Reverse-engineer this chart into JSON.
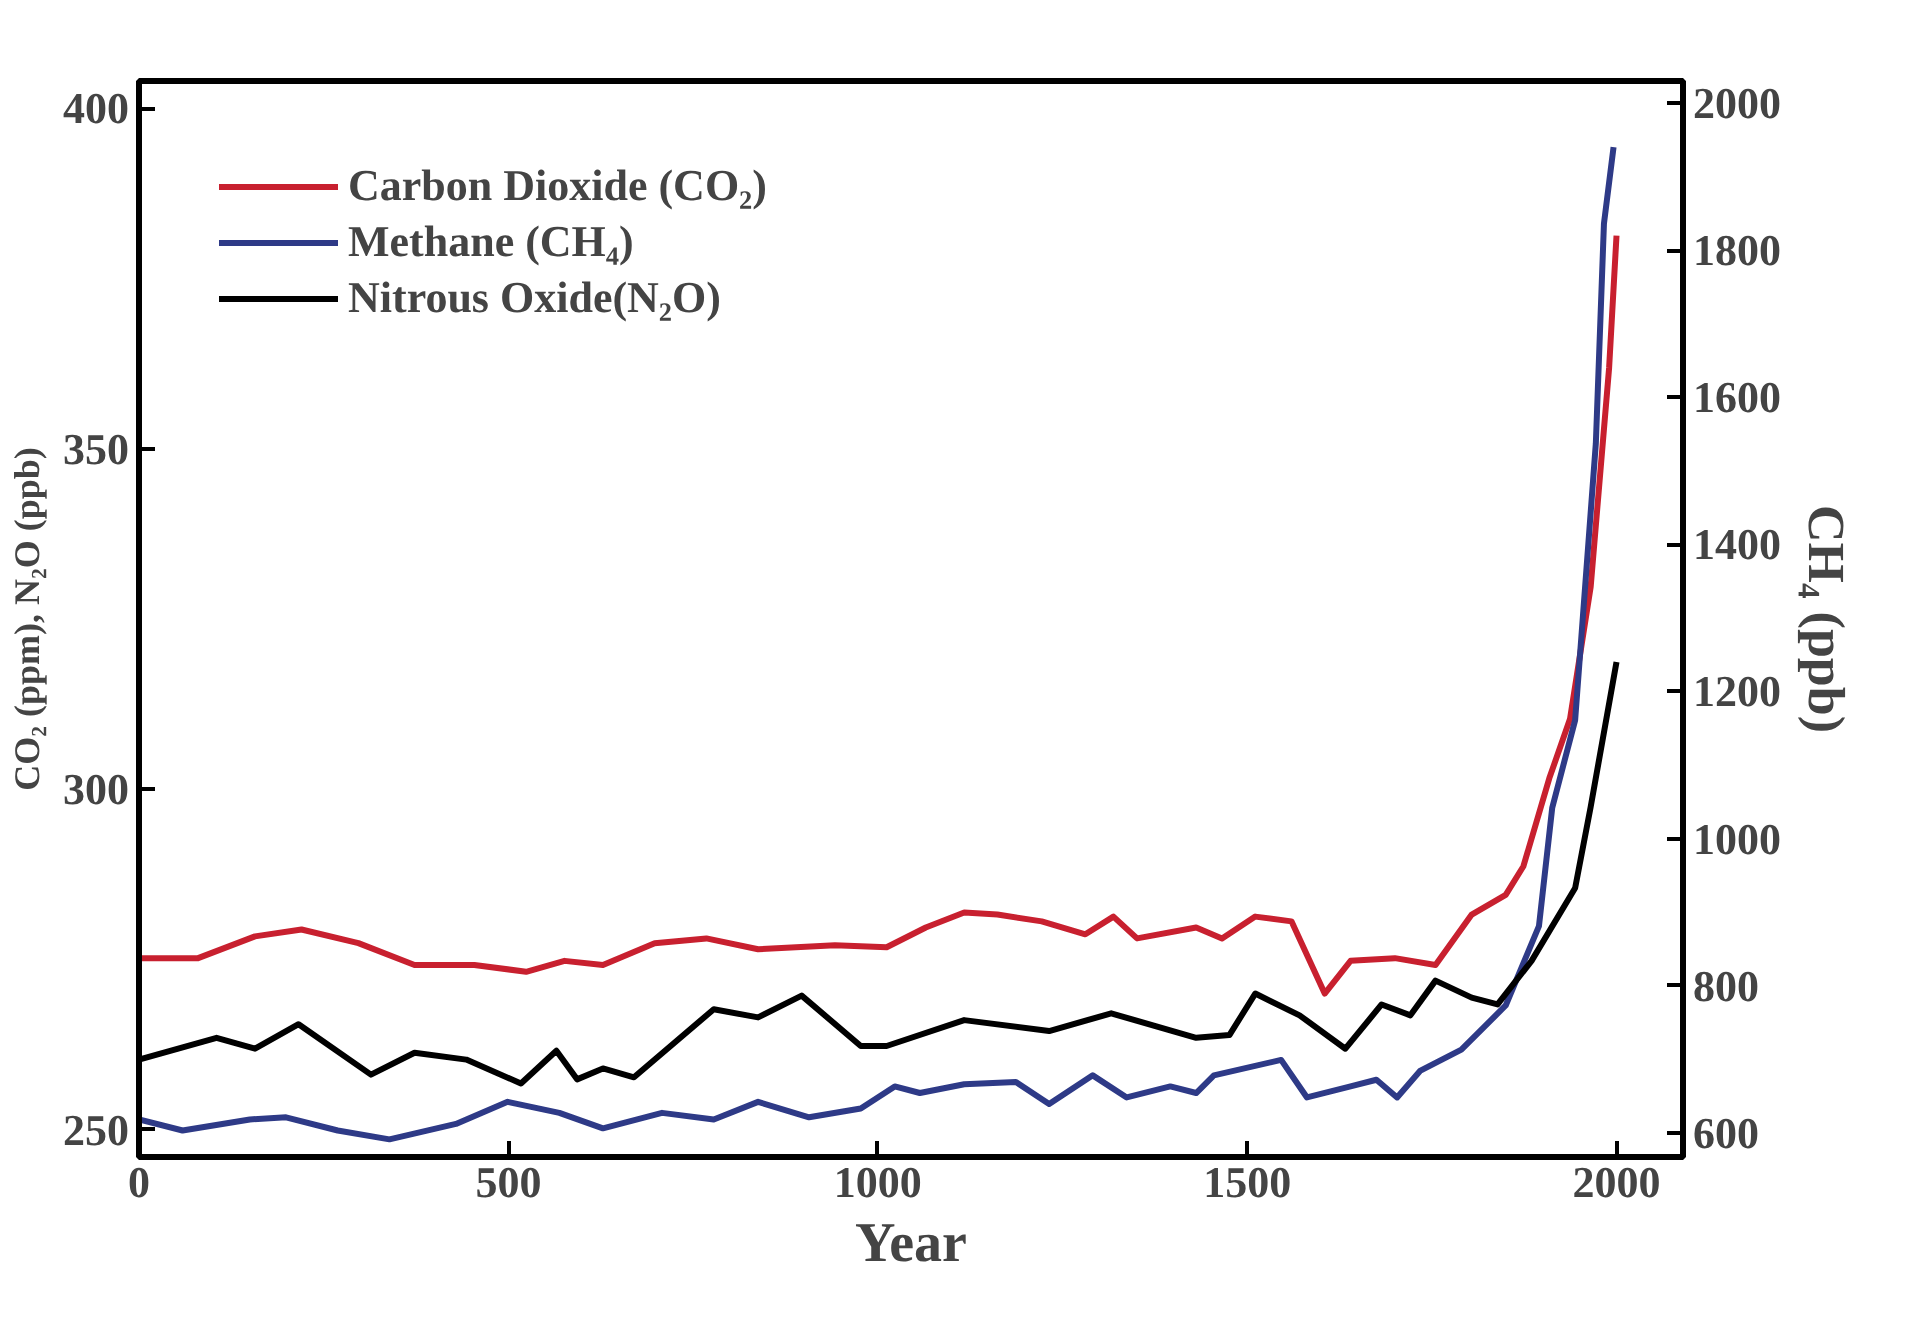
{
  "chart_data": {
    "type": "line",
    "xlabel": "Year",
    "ylabel": "CO₂ (ppm), N₂O (ppb)",
    "y2label": "CH₄ (ppb)",
    "xlim": [
      0,
      2090
    ],
    "xticks": [
      0,
      500,
      1000,
      1500,
      2000
    ],
    "ylim": [
      246,
      404
    ],
    "yticks": [
      250,
      300,
      350,
      400
    ],
    "y2lim": [
      567,
      2030
    ],
    "y2ticks": [
      600,
      800,
      1000,
      1200,
      1400,
      1600,
      1800,
      2000
    ],
    "grid": false,
    "legend": "top left",
    "line_style": "solid",
    "series": [
      {
        "name": "Carbon Dioxide (CO₂)",
        "color": "#c8202f",
        "x": [
          0,
          80,
          157,
          220,
          297,
          373,
          454,
          524,
          576,
          628,
          698,
          768,
          838,
          942,
          1012,
          1065,
          1117,
          1162,
          1222,
          1281,
          1319,
          1351,
          1431,
          1466,
          1511,
          1560,
          1605,
          1640,
          1700,
          1755,
          1804,
          1850,
          1874,
          1909,
          1937,
          1965,
          1990,
          2000
        ],
        "values": [
          275.2,
          275.2,
          278.4,
          279.4,
          277.4,
          274.2,
          274.2,
          273.2,
          274.8,
          274.2,
          277.4,
          278.1,
          276.5,
          277.1,
          276.8,
          279.7,
          281.9,
          281.6,
          280.6,
          278.7,
          281.3,
          278.1,
          279.7,
          278.1,
          281.3,
          280.6,
          270,
          274.8,
          275.2,
          274.2,
          281.6,
          284.5,
          288.7,
          301.6,
          310.3,
          329.7,
          361.9,
          381.3
        ]
      },
      {
        "name": "Methane (CH₄)",
        "color": "#2e3a87",
        "axis": "y2",
        "x": [
          0,
          59,
          150,
          199,
          269,
          339,
          429,
          499,
          569,
          628,
          708,
          778,
          838,
          907,
          977,
          1023,
          1057,
          1117,
          1187,
          1232,
          1291,
          1337,
          1396,
          1431,
          1455,
          1546,
          1581,
          1640,
          1675,
          1703,
          1734,
          1790,
          1850,
          1895,
          1913,
          1944,
          1972,
          1983,
          1996
        ],
        "values": [
          618,
          603,
          618,
          621,
          603,
          591,
          612,
          642,
          627,
          606,
          627,
          618,
          642,
          621,
          633,
          663,
          654,
          666,
          669,
          639,
          678,
          648,
          663,
          654,
          678,
          699,
          648,
          663,
          672,
          648,
          684,
          713,
          773,
          881,
          1042,
          1161,
          1537,
          1836,
          1940
        ]
      },
      {
        "name": "Nitrous Oxide(N₂O)",
        "color": "#000000",
        "x": [
          0,
          105,
          157,
          216,
          314,
          373,
          443,
          517,
          565,
          593,
          628,
          670,
          778,
          838,
          897,
          977,
          1012,
          1117,
          1232,
          1316,
          1431,
          1476,
          1511,
          1571,
          1633,
          1682,
          1721,
          1755,
          1804,
          1839,
          1885,
          1944,
          1965,
          2000
        ],
        "values": [
          260.3,
          263.5,
          261.9,
          265.5,
          258.1,
          261.3,
          260.3,
          256.8,
          261.6,
          257.4,
          259.0,
          257.7,
          267.7,
          266.5,
          269.7,
          262.3,
          262.3,
          266.1,
          264.5,
          267.1,
          263.5,
          263.9,
          270,
          266.8,
          261.9,
          268.4,
          266.8,
          271.9,
          269.4,
          268.4,
          274.8,
          285.5,
          297.4,
          318.7
        ]
      }
    ]
  }
}
